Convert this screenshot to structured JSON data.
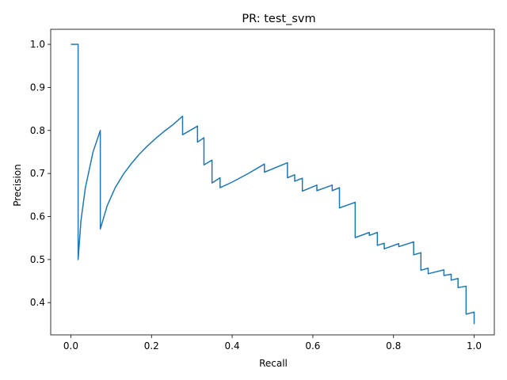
{
  "chart_data": {
    "type": "line",
    "title": "PR: test_svm",
    "xlabel": "Recall",
    "ylabel": "Precision",
    "xlim": [
      -0.05,
      1.05
    ],
    "ylim": [
      0.325,
      1.035
    ],
    "xticks": [
      "0.0",
      "0.2",
      "0.4",
      "0.6",
      "0.8",
      "1.0"
    ],
    "yticks": [
      "0.4",
      "0.5",
      "0.6",
      "0.7",
      "0.8",
      "0.9",
      "1.0"
    ],
    "grid": false,
    "line_color": "#1f77b4",
    "series": [
      {
        "x": [
          0.0,
          0.018,
          0.018,
          0.018,
          0.025,
          0.036,
          0.055,
          0.073,
          0.073,
          0.073,
          0.09,
          0.11,
          0.13,
          0.15,
          0.17,
          0.19,
          0.21,
          0.23,
          0.25,
          0.277,
          0.277,
          0.314,
          0.314,
          0.33,
          0.33,
          0.35,
          0.35,
          0.37,
          0.37,
          0.4,
          0.44,
          0.48,
          0.48,
          0.537,
          0.537,
          0.555,
          0.555,
          0.574,
          0.574,
          0.61,
          0.61,
          0.648,
          0.648,
          0.666,
          0.666,
          0.705,
          0.705,
          0.74,
          0.74,
          0.76,
          0.76,
          0.777,
          0.777,
          0.813,
          0.813,
          0.85,
          0.85,
          0.868,
          0.868,
          0.886,
          0.886,
          0.925,
          0.925,
          0.943,
          0.943,
          0.96,
          0.96,
          0.98,
          0.98,
          1.0,
          1.0
        ],
        "y": [
          1.0,
          1.0,
          0.9,
          0.5,
          0.59,
          0.667,
          0.75,
          0.8,
          0.65,
          0.571,
          0.625,
          0.667,
          0.698,
          0.723,
          0.745,
          0.764,
          0.781,
          0.797,
          0.811,
          0.833,
          0.79,
          0.81,
          0.773,
          0.783,
          0.72,
          0.731,
          0.678,
          0.69,
          0.667,
          0.68,
          0.7,
          0.722,
          0.703,
          0.725,
          0.69,
          0.697,
          0.682,
          0.689,
          0.659,
          0.673,
          0.66,
          0.673,
          0.66,
          0.667,
          0.62,
          0.633,
          0.551,
          0.563,
          0.556,
          0.563,
          0.533,
          0.538,
          0.525,
          0.537,
          0.53,
          0.541,
          0.511,
          0.516,
          0.475,
          0.48,
          0.467,
          0.476,
          0.463,
          0.466,
          0.452,
          0.456,
          0.435,
          0.438,
          0.373,
          0.378,
          0.35
        ]
      }
    ]
  }
}
